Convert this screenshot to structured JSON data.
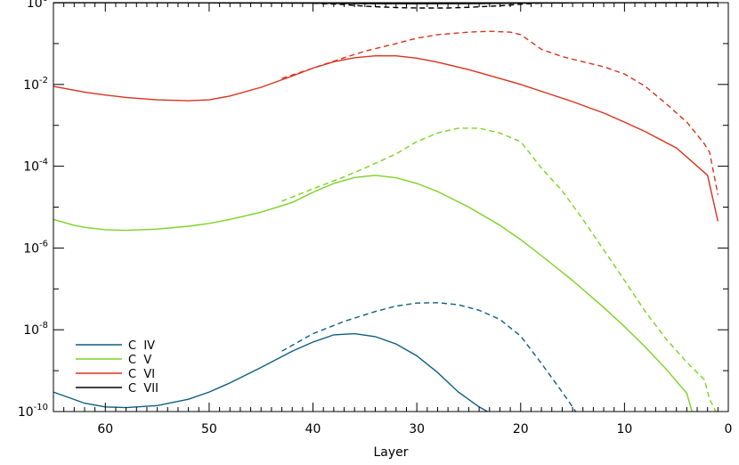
{
  "chart_data": {
    "type": "line",
    "xlabel": "Layer",
    "ylabel": "",
    "xlim": [
      65,
      0
    ],
    "ylim": [
      1e-10,
      1
    ],
    "yscale": "log",
    "x_ticks": [
      60,
      50,
      40,
      30,
      20,
      10,
      0
    ],
    "y_ticks": [
      {
        "value": 1,
        "mantissa": "10",
        "exp": "0"
      },
      {
        "value": 0.01,
        "mantissa": "10",
        "exp": "-2"
      },
      {
        "value": 0.0001,
        "mantissa": "10",
        "exp": "-4"
      },
      {
        "value": 1e-06,
        "mantissa": "10",
        "exp": "-6"
      },
      {
        "value": 1e-08,
        "mantissa": "10",
        "exp": "-8"
      },
      {
        "value": 1e-10,
        "mantissa": "10",
        "exp": "-10"
      }
    ],
    "grid": false,
    "legend_position": "bottom-left",
    "series": [
      {
        "name": "C  IV",
        "color": "#0e5e80",
        "style": "solid",
        "x": [
          65,
          62,
          60,
          58,
          55,
          52,
          50,
          48,
          45,
          42,
          40,
          38,
          36,
          34,
          32,
          30,
          28,
          26,
          24,
          23.2
        ],
        "y": [
          3e-10,
          1.6e-10,
          1.3e-10,
          1.25e-10,
          1.4e-10,
          2e-10,
          3e-10,
          5e-10,
          1.2e-09,
          3e-09,
          5e-09,
          7.5e-09,
          8e-09,
          6.8e-09,
          4.5e-09,
          2.3e-09,
          9e-10,
          3e-10,
          1.3e-10,
          1e-10
        ]
      },
      {
        "name": "",
        "color": "#0e5e80",
        "style": "dashed",
        "x": [
          43,
          40,
          37,
          34,
          32,
          30,
          28,
          26,
          24,
          22,
          20,
          18,
          16,
          14.7
        ],
        "y": [
          3e-09,
          8e-09,
          1.6e-08,
          2.8e-08,
          3.8e-08,
          4.5e-08,
          4.6e-08,
          4.1e-08,
          3e-08,
          1.8e-08,
          7e-09,
          1.5e-09,
          3e-10,
          1e-10
        ]
      },
      {
        "name": "C  V",
        "color": "#7ad321",
        "style": "solid",
        "x": [
          65,
          63,
          62,
          60,
          58,
          55,
          52,
          50,
          48,
          45,
          42,
          40,
          38,
          36,
          34,
          32,
          30,
          28,
          25,
          22,
          20,
          18,
          15,
          12,
          10,
          8,
          6,
          4,
          3.5
        ],
        "y": [
          5e-06,
          3.6e-06,
          3.2e-06,
          2.8e-06,
          2.7e-06,
          2.9e-06,
          3.4e-06,
          4e-06,
          5e-06,
          7.5e-06,
          1.3e-05,
          2.3e-05,
          3.8e-05,
          5.3e-05,
          6e-05,
          5.2e-05,
          3.8e-05,
          2.4e-05,
          1e-05,
          3.6e-06,
          1.6e-06,
          6.5e-07,
          1.6e-07,
          3.5e-08,
          1.2e-08,
          3.8e-09,
          1.1e-09,
          2.8e-10,
          1e-10
        ]
      },
      {
        "name": "",
        "color": "#7ad321",
        "style": "dashed",
        "x": [
          43,
          40,
          37,
          35,
          32,
          30,
          28,
          26,
          24,
          22,
          20,
          18,
          16,
          14,
          12,
          10,
          8,
          6,
          4,
          2.3,
          1.8,
          1.2
        ],
        "y": [
          1.4e-05,
          2.8e-05,
          5.5e-05,
          9e-05,
          0.0002,
          0.0004,
          0.00065,
          0.00085,
          0.00085,
          0.00065,
          0.0004,
          9e-05,
          2.5e-05,
          5e-06,
          9e-07,
          1.6e-07,
          2.8e-08,
          6e-09,
          1.6e-09,
          6e-10,
          2e-10,
          1e-10
        ]
      },
      {
        "name": "C  VI",
        "color": "#d8321c",
        "style": "solid",
        "x": [
          65,
          62,
          60,
          58,
          55,
          52,
          50,
          48,
          45,
          42,
          40,
          38,
          36,
          34,
          32,
          30,
          28,
          25,
          22,
          20,
          18,
          15,
          12,
          10,
          8,
          5,
          2,
          1
        ],
        "y": [
          0.009,
          0.0065,
          0.0055,
          0.0048,
          0.0042,
          0.004,
          0.0042,
          0.0052,
          0.0085,
          0.016,
          0.025,
          0.036,
          0.045,
          0.05,
          0.05,
          0.044,
          0.035,
          0.023,
          0.014,
          0.01,
          0.0068,
          0.0038,
          0.002,
          0.0012,
          0.0007,
          0.00028,
          6e-05,
          4.5e-06
        ]
      },
      {
        "name": "",
        "color": "#d8321c",
        "style": "dashed",
        "x": [
          43,
          40,
          37,
          35,
          32,
          30,
          28,
          25,
          23,
          21,
          20,
          19,
          18,
          16,
          14,
          12,
          10,
          8,
          6,
          4,
          2.3,
          1.8,
          1
        ],
        "y": [
          0.014,
          0.025,
          0.045,
          0.065,
          0.1,
          0.135,
          0.165,
          0.19,
          0.2,
          0.19,
          0.165,
          0.11,
          0.072,
          0.048,
          0.036,
          0.027,
          0.018,
          0.009,
          0.0034,
          0.0012,
          0.00035,
          0.00022,
          2e-05
        ]
      },
      {
        "name": "C  VII",
        "color": "#000000",
        "style": "solid",
        "x": [
          65,
          60,
          50,
          40,
          35,
          30,
          25,
          20,
          15,
          10,
          5,
          1
        ],
        "y": [
          0.995,
          0.995,
          0.99,
          0.97,
          0.95,
          0.94,
          0.95,
          0.97,
          0.99,
          0.995,
          0.998,
          0.999
        ]
      },
      {
        "name": "",
        "color": "#000000",
        "style": "dashed",
        "x": [
          40,
          37,
          35,
          32,
          30,
          27,
          25,
          22,
          20,
          18,
          16
        ],
        "y": [
          0.97,
          0.9,
          0.82,
          0.76,
          0.74,
          0.74,
          0.77,
          0.84,
          0.92,
          0.98,
          0.995
        ]
      }
    ]
  }
}
